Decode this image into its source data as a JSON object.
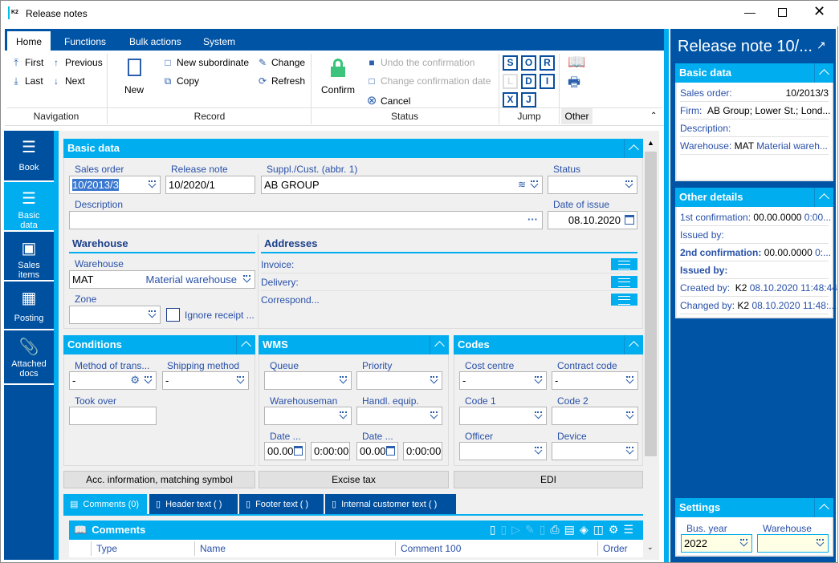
{
  "window": {
    "title": "Release notes",
    "icon": "k2-logo",
    "controls": [
      "minimize",
      "maximize",
      "close"
    ]
  },
  "ribbon": {
    "tabs": [
      "Home",
      "Functions",
      "Bulk actions",
      "System"
    ],
    "active_tab": "Home",
    "navigation": {
      "first": "First",
      "previous": "Previous",
      "last": "Last",
      "next": "Next",
      "label": "Navigation"
    },
    "record": {
      "new": "New",
      "new_subordinate": "New subordinate",
      "change": "Change",
      "copy": "Copy",
      "refresh": "Refresh",
      "label": "Record"
    },
    "status": {
      "confirm": "Confirm",
      "undo": "Undo the confirmation",
      "change_date": "Change confirmation date",
      "cancel": "Cancel",
      "label": "Status"
    },
    "jump": {
      "buttons": [
        "S",
        "O",
        "R",
        "L",
        "D",
        "I",
        "X",
        "J"
      ],
      "label": "Jump"
    },
    "other": {
      "label": "Other"
    }
  },
  "sidebar": {
    "items": [
      {
        "label": "Book",
        "icon": "hamburger-icon"
      },
      {
        "label": "Basic data",
        "icon": "list-icon",
        "active": true
      },
      {
        "label": "Sales items",
        "icon": "box-icon"
      },
      {
        "label": "Posting",
        "icon": "calculator-icon"
      },
      {
        "label": "Attached docs",
        "icon": "paperclip-icon"
      }
    ]
  },
  "basic": {
    "title": "Basic data",
    "sales_order": {
      "label": "Sales order",
      "value": "10/2013/3"
    },
    "release_note": {
      "label": "Release note",
      "value": "10/2020/1"
    },
    "supplier": {
      "label": "Suppl./Cust. (abbr. 1)",
      "value": "AB GROUP"
    },
    "status": {
      "label": "Status",
      "value": ""
    },
    "description": {
      "label": "Description",
      "value": "",
      "ellipsis": "···"
    },
    "date_of_issue": {
      "label": "Date of issue",
      "value": "08.10.2020"
    },
    "warehouse_section": "Warehouse",
    "warehouse": {
      "label": "Warehouse",
      "code": "MAT",
      "name": "Material warehouse"
    },
    "zone": {
      "label": "Zone",
      "value": ""
    },
    "ignore_receipt": {
      "label": "Ignore receipt ...",
      "checked": false
    },
    "addresses": {
      "title": "Addresses",
      "invoice": "Invoice:",
      "delivery": "Delivery:",
      "correspond": "Correspond..."
    }
  },
  "conditions": {
    "title": "Conditions",
    "method": {
      "label": "Method of trans...",
      "value": "-"
    },
    "shipping": {
      "label": "Shipping method",
      "value": "-"
    },
    "took_over": {
      "label": "Took over",
      "value": ""
    }
  },
  "wms": {
    "title": "WMS",
    "queue": "Queue",
    "priority": "Priority",
    "warehouseman": "Warehouseman",
    "handl": "Handl. equip.",
    "date1": {
      "label": "Date ...",
      "date": "00.00",
      "time": "0:00:00"
    },
    "date2": {
      "label": "Date ...",
      "date": "00.00",
      "time": "0:00:00"
    }
  },
  "codes": {
    "title": "Codes",
    "cost_centre": {
      "label": "Cost centre",
      "value": "-"
    },
    "contract": {
      "label": "Contract code",
      "value": "-"
    },
    "code1": "Code 1",
    "code2": "Code 2",
    "officer": "Officer",
    "device": "Device"
  },
  "buttons": {
    "acc": "Acc. information, matching symbol",
    "excise": "Excise tax",
    "edi": "EDI"
  },
  "bottom_tabs": [
    "Comments (0)",
    "Header text ( )",
    "Footer text ( )",
    "Internal customer text ( )"
  ],
  "comments": {
    "title": "Comments",
    "columns": [
      "Type",
      "Name",
      "Comment 100",
      "Order"
    ]
  },
  "right": {
    "title": "Release note 10/...",
    "basic": {
      "title": "Basic data",
      "sales_order_label": "Sales order:",
      "sales_order": "10/2013/3",
      "firm_label": "Firm:",
      "firm": "AB Group; Lower St.; Lond...",
      "description_label": "Description:",
      "warehouse_label": "Warehouse:",
      "warehouse_code": "MAT",
      "warehouse_name": "Material wareh..."
    },
    "other": {
      "title": "Other details",
      "c1_label": "1st confirmation:",
      "c1_date": "00.00.0000",
      "c1_time": "0:00...",
      "issued1": "Issued by:",
      "c2_label": "2nd confirmation:",
      "c2_date": "00.00.0000",
      "c2_time": "0:...",
      "issued2": "Issued by:",
      "created_label": "Created by:",
      "created_user": "K2",
      "created_at": "08.10.2020 11:48:44",
      "changed_label": "Changed by:",
      "changed_user": "K2",
      "changed_at": "08.10.2020 11:48:..."
    },
    "settings": {
      "title": "Settings",
      "bus_year": {
        "label": "Bus. year",
        "value": "2022"
      },
      "warehouse": {
        "label": "Warehouse",
        "value": ""
      }
    }
  },
  "colors": {
    "dark_blue": "#0054a6",
    "light_blue": "#00adef",
    "label_blue": "#2850a8",
    "confirm_green": "#3cc47c"
  }
}
